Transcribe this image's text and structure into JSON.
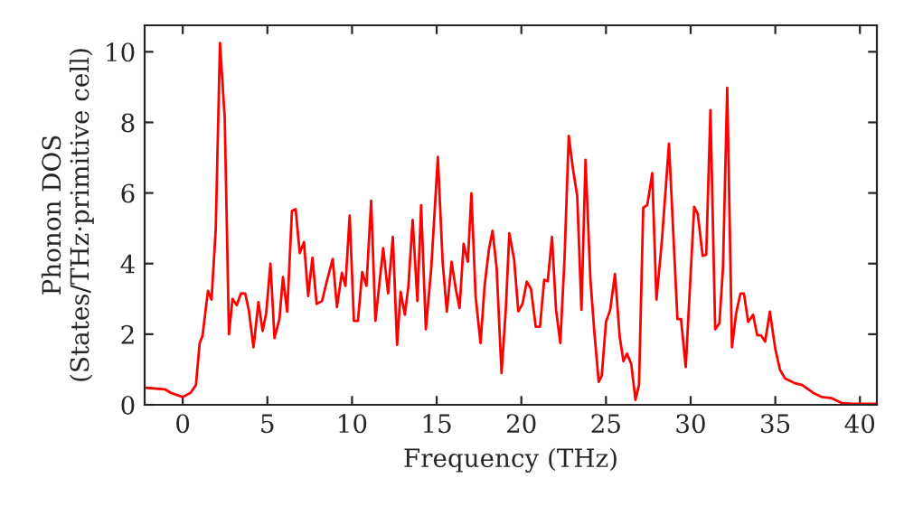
{
  "chart_data": {
    "type": "line",
    "xlabel": "Frequency (THz)",
    "ylabel": "Phonon DOS\n(States/THz·primitive cell)",
    "xlim": [
      -2.25,
      41
    ],
    "ylim": [
      0,
      10.75
    ],
    "xticks": [
      0,
      5,
      10,
      15,
      20,
      25,
      30,
      35,
      40
    ],
    "yticks": [
      0,
      2,
      4,
      6,
      8,
      10
    ],
    "grid": false,
    "legend": false,
    "line_style": "solid",
    "marker": "none",
    "series": [
      {
        "color": "#ff0000",
        "x": [
          -2.13,
          -1.06,
          -0.71,
          0.0,
          0.46,
          0.78,
          1.0,
          1.17,
          1.49,
          1.7,
          1.95,
          2.2,
          2.48,
          2.73,
          2.94,
          3.19,
          3.44,
          3.69,
          3.9,
          4.18,
          4.47,
          4.72,
          4.93,
          5.18,
          5.42,
          5.71,
          5.92,
          6.17,
          6.45,
          6.67,
          6.91,
          7.16,
          7.41,
          7.66,
          7.91,
          8.23,
          8.51,
          8.86,
          9.11,
          9.4,
          9.61,
          9.86,
          10.11,
          10.35,
          10.6,
          10.85,
          11.13,
          11.38,
          11.84,
          12.13,
          12.41,
          12.66,
          12.87,
          13.12,
          13.33,
          13.58,
          13.86,
          14.08,
          14.36,
          14.68,
          15.07,
          15.35,
          15.6,
          15.88,
          16.13,
          16.35,
          16.59,
          16.84,
          17.05,
          17.3,
          17.59,
          17.83,
          18.08,
          18.3,
          18.54,
          18.83,
          19.08,
          19.29,
          19.57,
          19.82,
          20.07,
          20.32,
          20.57,
          20.85,
          21.1,
          21.35,
          21.56,
          21.81,
          22.05,
          22.3,
          22.55,
          22.8,
          23.05,
          23.3,
          23.55,
          23.79,
          24.08,
          24.32,
          24.57,
          24.75,
          25.0,
          25.25,
          25.53,
          25.81,
          26.03,
          26.24,
          26.49,
          26.74,
          26.95,
          27.2,
          27.44,
          27.73,
          27.98,
          28.3,
          28.72,
          29.22,
          29.43,
          29.71,
          30.21,
          30.42,
          30.71,
          30.92,
          31.17,
          31.45,
          31.7,
          31.91,
          32.16,
          32.44,
          32.69,
          32.94,
          33.15,
          33.4,
          33.69,
          33.93,
          34.15,
          34.4,
          34.68,
          35.0,
          35.28,
          35.57,
          36.17,
          36.59,
          37.23,
          37.76,
          38.3,
          38.93,
          39.54,
          40.95
        ],
        "values": [
          0.48,
          0.44,
          0.34,
          0.22,
          0.34,
          0.56,
          1.75,
          1.96,
          3.23,
          2.98,
          4.98,
          10.25,
          8.13,
          2.0,
          3.0,
          2.82,
          3.16,
          3.15,
          2.69,
          1.63,
          2.91,
          2.09,
          2.6,
          4.0,
          1.89,
          2.43,
          3.62,
          2.64,
          5.49,
          5.54,
          4.3,
          4.61,
          3.08,
          4.17,
          2.86,
          2.94,
          3.5,
          4.13,
          2.77,
          3.74,
          3.37,
          5.36,
          2.38,
          2.38,
          3.76,
          3.37,
          5.78,
          2.38,
          4.44,
          3.16,
          4.76,
          1.7,
          3.2,
          2.55,
          3.37,
          5.24,
          2.94,
          5.65,
          2.14,
          3.88,
          7.02,
          4.05,
          2.64,
          4.05,
          3.28,
          2.74,
          4.56,
          4.05,
          5.99,
          3.06,
          1.75,
          3.37,
          4.39,
          4.93,
          3.88,
          0.9,
          2.69,
          4.86,
          4.13,
          2.65,
          2.86,
          3.49,
          3.28,
          2.21,
          2.21,
          3.54,
          3.5,
          4.76,
          2.69,
          1.75,
          4.13,
          7.62,
          6.68,
          5.92,
          2.69,
          6.94,
          3.54,
          2.01,
          0.65,
          0.82,
          2.35,
          2.69,
          3.71,
          1.92,
          1.24,
          1.45,
          1.16,
          0.14,
          0.56,
          5.58,
          5.66,
          6.56,
          2.98,
          4.64,
          7.4,
          2.43,
          2.43,
          1.07,
          5.61,
          5.41,
          4.22,
          4.25,
          8.35,
          2.14,
          2.31,
          3.88,
          8.98,
          1.63,
          2.6,
          3.15,
          3.15,
          2.35,
          2.55,
          1.97,
          1.97,
          1.79,
          2.64,
          1.58,
          0.99,
          0.75,
          0.61,
          0.56,
          0.34,
          0.22,
          0.19,
          0.05,
          0.03,
          0.03
        ]
      }
    ]
  }
}
